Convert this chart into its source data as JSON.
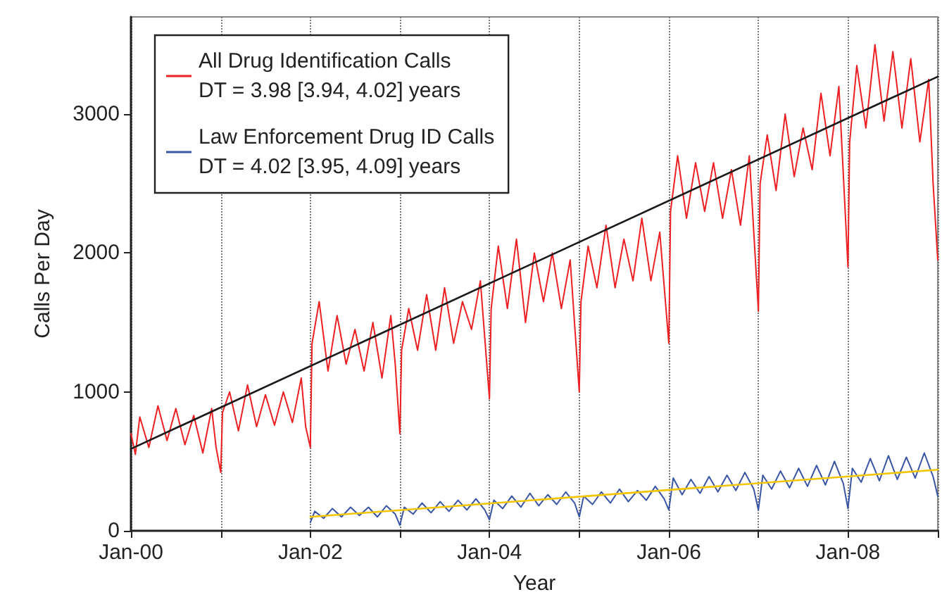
{
  "chart_data": {
    "type": "line",
    "xlabel": "Year",
    "ylabel": "Calls Per Day",
    "xlim": [
      "2000-01-01",
      "2009-01-01"
    ],
    "xticks": [
      {
        "value": "2000-01-01",
        "label": "Jan-00"
      },
      {
        "value": "2001-01-01",
        "label": null
      },
      {
        "value": "2002-01-01",
        "label": "Jan-02"
      },
      {
        "value": "2003-01-01",
        "label": null
      },
      {
        "value": "2004-01-01",
        "label": "Jan-04"
      },
      {
        "value": "2005-01-01",
        "label": null
      },
      {
        "value": "2006-01-01",
        "label": "Jan-06"
      },
      {
        "value": "2007-01-01",
        "label": null
      },
      {
        "value": "2008-01-01",
        "label": "Jan-08"
      },
      {
        "value": "2009-01-01",
        "label": null
      }
    ],
    "ylim": [
      0,
      3700
    ],
    "yticks": [
      0,
      1000,
      2000,
      3000
    ],
    "grid": "x",
    "legend": "top left",
    "marker": "none",
    "line_style": "solid",
    "series": [
      {
        "name": "All Drug Identification Calls\nDT = 3.98 [3.94, 4.02] years",
        "color": "#ed2024",
        "x": [
          "2000-01-01",
          "2000-01-19",
          "2000-02-06",
          "2000-03-14",
          "2000-04-20",
          "2000-05-27",
          "2000-07-02",
          "2000-08-08",
          "2000-09-13",
          "2000-10-20",
          "2000-11-25",
          "2000-12-13",
          "2001-01-01",
          "2001-01-08",
          "2001-02-06",
          "2001-03-14",
          "2001-04-20",
          "2001-05-27",
          "2001-07-02",
          "2001-08-08",
          "2001-09-13",
          "2001-10-20",
          "2001-11-25",
          "2001-12-13",
          "2002-01-01",
          "2002-01-08",
          "2002-02-06",
          "2002-03-14",
          "2002-04-20",
          "2002-05-27",
          "2002-07-02",
          "2002-08-08",
          "2002-09-13",
          "2002-10-20",
          "2002-11-25",
          "2002-12-13",
          "2003-01-01",
          "2003-01-08",
          "2003-02-06",
          "2003-03-14",
          "2003-04-20",
          "2003-05-27",
          "2003-07-02",
          "2003-08-08",
          "2003-09-13",
          "2003-10-20",
          "2003-11-25",
          "2004-01-01",
          "2004-01-08",
          "2004-02-06",
          "2004-03-14",
          "2004-04-20",
          "2004-05-27",
          "2004-07-02",
          "2004-08-08",
          "2004-09-13",
          "2004-10-20",
          "2004-11-25",
          "2005-01-01",
          "2005-01-08",
          "2005-02-06",
          "2005-03-14",
          "2005-04-20",
          "2005-05-27",
          "2005-07-02",
          "2005-08-08",
          "2005-09-13",
          "2005-10-20",
          "2005-11-25",
          "2006-01-01",
          "2006-01-08",
          "2006-02-06",
          "2006-03-14",
          "2006-04-20",
          "2006-05-27",
          "2006-07-02",
          "2006-08-08",
          "2006-09-13",
          "2006-10-20",
          "2006-11-25",
          "2007-01-01",
          "2007-01-08",
          "2007-02-06",
          "2007-03-14",
          "2007-04-20",
          "2007-05-27",
          "2007-07-02",
          "2007-08-08",
          "2007-09-13",
          "2007-10-20",
          "2007-11-25",
          "2008-01-01",
          "2008-01-08",
          "2008-02-06",
          "2008-03-14",
          "2008-04-20",
          "2008-05-27",
          "2008-07-02",
          "2008-08-08",
          "2008-09-13",
          "2008-10-20",
          "2008-11-25",
          "2008-12-13",
          "2009-01-01"
        ],
        "values": [
          700,
          550,
          820,
          600,
          900,
          650,
          880,
          620,
          830,
          560,
          880,
          600,
          420,
          850,
          1000,
          720,
          1050,
          750,
          980,
          760,
          1000,
          780,
          1100,
          750,
          600,
          1350,
          1650,
          1150,
          1550,
          1200,
          1450,
          1150,
          1500,
          1100,
          1550,
          1200,
          700,
          1300,
          1600,
          1300,
          1700,
          1300,
          1750,
          1350,
          1650,
          1450,
          1800,
          950,
          1600,
          2050,
          1600,
          2100,
          1500,
          2000,
          1650,
          2000,
          1600,
          1950,
          1000,
          1650,
          2050,
          1750,
          2200,
          1750,
          2100,
          1800,
          2250,
          1800,
          2150,
          1350,
          2300,
          2700,
          2250,
          2650,
          2300,
          2650,
          2250,
          2600,
          2200,
          2700,
          1580,
          2500,
          2850,
          2450,
          3000,
          2550,
          2900,
          2600,
          3150,
          2700,
          3200,
          1900,
          2800,
          3350,
          2900,
          3500,
          2950,
          3450,
          2900,
          3400,
          2800,
          3250,
          2500,
          1950
        ]
      },
      {
        "name": "Law Enforcement Drug ID Calls\nDT = 4.02 [3.95, 4.09] years",
        "color": "#3a55a4",
        "x": [
          "2002-01-01",
          "2002-01-19",
          "2002-02-24",
          "2002-04-01",
          "2002-05-08",
          "2002-06-14",
          "2002-07-20",
          "2002-08-26",
          "2002-10-01",
          "2002-11-07",
          "2002-12-13",
          "2003-01-01",
          "2003-01-19",
          "2003-02-24",
          "2003-04-01",
          "2003-05-08",
          "2003-06-14",
          "2003-07-20",
          "2003-08-26",
          "2003-10-01",
          "2003-11-07",
          "2003-12-13",
          "2004-01-01",
          "2004-01-19",
          "2004-02-24",
          "2004-04-01",
          "2004-05-08",
          "2004-06-14",
          "2004-07-20",
          "2004-08-26",
          "2004-10-01",
          "2004-11-07",
          "2004-12-13",
          "2005-01-01",
          "2005-01-19",
          "2005-02-24",
          "2005-04-01",
          "2005-05-08",
          "2005-06-14",
          "2005-07-20",
          "2005-08-26",
          "2005-10-01",
          "2005-11-07",
          "2005-12-13",
          "2006-01-01",
          "2006-01-19",
          "2006-02-24",
          "2006-04-01",
          "2006-05-08",
          "2006-06-14",
          "2006-07-20",
          "2006-08-26",
          "2006-10-01",
          "2006-11-07",
          "2006-12-13",
          "2007-01-01",
          "2007-01-19",
          "2007-02-24",
          "2007-04-01",
          "2007-05-08",
          "2007-06-14",
          "2007-07-20",
          "2007-08-26",
          "2007-10-01",
          "2007-11-07",
          "2007-12-13",
          "2008-01-01",
          "2008-01-19",
          "2008-02-24",
          "2008-04-01",
          "2008-05-08",
          "2008-06-14",
          "2008-07-20",
          "2008-08-26",
          "2008-10-01",
          "2008-11-07",
          "2008-12-13",
          "2009-01-01"
        ],
        "values": [
          60,
          140,
          90,
          160,
          100,
          170,
          110,
          170,
          100,
          180,
          120,
          40,
          170,
          120,
          200,
          130,
          210,
          140,
          220,
          150,
          230,
          150,
          80,
          220,
          160,
          250,
          170,
          270,
          180,
          260,
          190,
          280,
          200,
          100,
          250,
          190,
          280,
          200,
          300,
          210,
          290,
          220,
          320,
          230,
          150,
          380,
          260,
          370,
          270,
          390,
          280,
          400,
          290,
          420,
          300,
          150,
          400,
          300,
          430,
          310,
          450,
          320,
          470,
          330,
          500,
          340,
          160,
          450,
          350,
          520,
          360,
          540,
          370,
          530,
          380,
          560,
          390,
          250
        ]
      },
      {
        "type": "line",
        "color": "#1a1a1a",
        "x": [
          "2000-01-01",
          "2009-01-01"
        ],
        "values": [
          590,
          3270
        ]
      },
      {
        "type": "line",
        "color": "#f2c500",
        "x": [
          "2002-01-01",
          "2009-01-01"
        ],
        "values": [
          100,
          440
        ]
      }
    ]
  }
}
